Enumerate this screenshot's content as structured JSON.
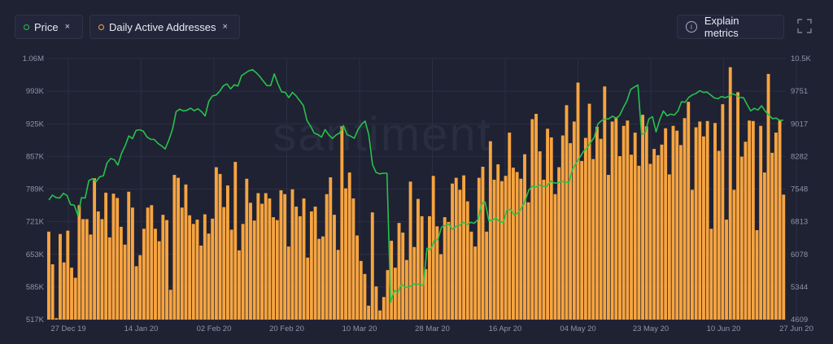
{
  "toolbar": {
    "price_label": "Price",
    "daa_label": "Daily Active Addresses",
    "close_glyph": "×",
    "explain_label": "Explain metrics",
    "info_glyph": "i",
    "icons": [
      "close-icon",
      "info-icon",
      "fullscreen-icon"
    ]
  },
  "watermark": "santiment",
  "colors": {
    "background": "#1f2233",
    "price": "#27c24c",
    "daa": "#f7a440",
    "grid": "#2b2f42",
    "text": "#8e93a8"
  },
  "chart_data": {
    "type": "bar+line",
    "x_ticks": [
      "27 Dec 19",
      "14 Jan 20",
      "02 Feb 20",
      "20 Feb 20",
      "10 Mar 20",
      "28 Mar 20",
      "16 Apr 20",
      "04 May 20",
      "23 May 20",
      "10 Jun 20",
      "27 Jun 20"
    ],
    "y_left_ticks": [
      "1.06M",
      "993K",
      "925K",
      "857K",
      "789K",
      "721K",
      "653K",
      "585K",
      "517K"
    ],
    "y_left_range": [
      517000,
      1060000
    ],
    "y_right_ticks": [
      "10.5K",
      "9751",
      "9017",
      "8282",
      "7548",
      "6813",
      "6078",
      "5344",
      "4609"
    ],
    "y_right_range": [
      4609,
      10500
    ],
    "grid": true,
    "legend": "top-left",
    "series": [
      {
        "name": "Daily Active Addresses",
        "axis": "left",
        "style": "bar",
        "values": [
          700,
          632,
          520,
          695,
          636,
          702,
          625,
          604,
          755,
          726,
          726,
          694,
          811,
          742,
          726,
          781,
          688,
          779,
          770,
          710,
          673,
          783,
          750,
          628,
          651,
          706,
          750,
          755,
          706,
          680,
          735,
          724,
          579,
          818,
          812,
          750,
          798,
          734,
          716,
          725,
          671,
          736,
          696,
          727,
          834,
          820,
          751,
          796,
          704,
          845,
          661,
          716,
          810,
          760,
          723,
          780,
          758,
          780,
          769,
          730,
          724,
          786,
          778,
          669,
          788,
          752,
          732,
          769,
          646,
          742,
          752,
          685,
          690,
          778,
          813,
          735,
          662,
          919,
          790,
          823,
          769,
          692,
          639,
          612,
          546,
          740,
          586,
          536,
          564,
          620,
          681,
          625,
          718,
          698,
          641,
          804,
          668,
          768,
          732,
          622,
          732,
          816,
          711,
          653,
          730,
          720,
          800,
          812,
          787,
          817,
          763,
          700,
          669,
          812,
          835,
          700,
          888,
          808,
          840,
          805,
          816,
          906,
          833,
          824,
          810,
          861,
          761,
          934,
          945,
          867,
          808,
          914,
          896,
          778,
          834,
          900,
          963,
          884,
          929,
          1010,
          847,
          895,
          966,
          851,
          918,
          893,
          1002,
          818,
          929,
          938,
          857,
          920,
          931,
          860,
          906,
          837,
          943,
          919,
          841,
          872,
          859,
          881,
          915,
          819,
          920,
          910,
          880,
          936,
          970,
          787,
          917,
          929,
          898,
          930,
          706,
          926,
          868,
          965,
          725,
          1042,
          787,
          990,
          856,
          887,
          931,
          930,
          703,
          920,
          823,
          1028,
          864,
          906,
          931,
          777
        ]
      },
      {
        "name": "Price",
        "axis": "right",
        "style": "line",
        "values": [
          7309,
          7417,
          7363,
          7352,
          7459,
          7407,
          7204,
          7191,
          6962,
          7362,
          7351,
          7745,
          7787,
          7722,
          7831,
          7856,
          8141,
          8245,
          8217,
          8096,
          8362,
          8532,
          8754,
          8693,
          8878,
          8895,
          8860,
          8730,
          8677,
          8674,
          8586,
          8529,
          8460,
          8657,
          8900,
          9300,
          9358,
          9319,
          9332,
          9381,
          9322,
          9368,
          9300,
          9204,
          9538,
          9657,
          9676,
          9762,
          9886,
          9928,
          9815,
          9907,
          9881,
          10112,
          10170,
          10222,
          10251,
          10185,
          10096,
          9991,
          9888,
          9891,
          10155,
          9935,
          9749,
          9736,
          9619,
          9735,
          9659,
          9547,
          9443,
          9101,
          8972,
          8818,
          8785,
          8727,
          8898,
          8777,
          8698,
          8777,
          8821,
          8987,
          8785,
          8750,
          8700,
          8892,
          9016,
          9089,
          8778,
          8108,
          7929,
          7898,
          7912,
          7913,
          5001,
          5265,
          5227,
          5403,
          5343,
          5339,
          5392,
          5426,
          5396,
          5382,
          6219,
          6190,
          6392,
          6416,
          6698,
          6735,
          6766,
          6642,
          6716,
          6732,
          6803,
          6757,
          6803,
          6781,
          6862,
          7225,
          7265,
          6844,
          6857,
          6902,
          6815,
          6807,
          7088,
          7094,
          6968,
          7020,
          7121,
          7295,
          7535,
          7620,
          7602,
          7645,
          7618,
          7618,
          7738,
          7690,
          7693,
          7729,
          7714,
          7701,
          8000,
          8140,
          8268,
          8400,
          8484,
          8612,
          8720,
          9025,
          9100,
          9135,
          9140,
          9200,
          9150,
          9219,
          9394,
          9547,
          9800,
          9856,
          9902,
          8786,
          8821,
          9138,
          9187,
          8844,
          9120,
          9317,
          9208,
          9245,
          9225,
          9316,
          9525,
          9515,
          9625,
          9680,
          9715,
          9776,
          9734,
          9743,
          9680,
          9612,
          9593,
          9643,
          9618,
          9650,
          9705,
          9674,
          9620,
          9621,
          9467,
          9318,
          9377,
          9338,
          9435,
          9315,
          9229,
          9143,
          9157,
          9104,
          9111
        ]
      }
    ]
  }
}
